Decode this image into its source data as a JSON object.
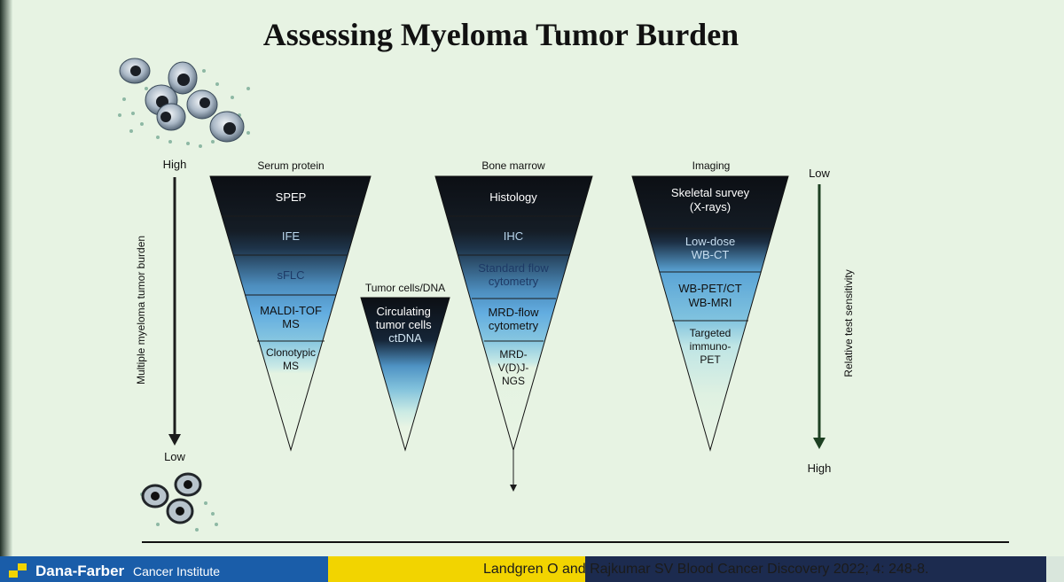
{
  "title": "Assessing Myeloma Tumor Burden",
  "left_axis": {
    "top": "High",
    "bottom": "Low",
    "label": "Multiple myeloma tumor burden"
  },
  "right_axis": {
    "top": "Low",
    "bottom": "High",
    "label": "Relative test sensitivity"
  },
  "serum": {
    "header": "Serum protein",
    "levels": [
      {
        "label": [
          "SPEP"
        ],
        "text_color": "#ffffff"
      },
      {
        "label": [
          "IFE"
        ],
        "text_color": "#b9d6ec"
      },
      {
        "label": [
          "sFLC"
        ],
        "text_color": "#1e3a66"
      },
      {
        "label": [
          "MALDI-TOF",
          "MS"
        ],
        "text_color": "#111111"
      },
      {
        "label": [
          "Clonotypic",
          "MS"
        ],
        "text_color": "#111111"
      }
    ]
  },
  "tumor": {
    "header": "Tumor cells/DNA",
    "label": [
      "Circulating",
      "tumor cells",
      "ctDNA"
    ]
  },
  "marrow": {
    "header": "Bone marrow",
    "levels": [
      {
        "label": [
          "Histology"
        ],
        "text_color": "#ffffff"
      },
      {
        "label": [
          "IHC"
        ],
        "text_color": "#b9d6ec"
      },
      {
        "label": [
          "Standard flow",
          "cytometry"
        ],
        "text_color": "#1e3a66"
      },
      {
        "label": [
          "MRD-flow",
          "cytometry"
        ],
        "text_color": "#111111"
      },
      {
        "label": [
          "MRD-",
          "V(D)J-",
          "NGS"
        ],
        "text_color": "#111111"
      }
    ]
  },
  "imaging": {
    "header": "Imaging",
    "levels": [
      {
        "label": [
          "Skeletal survey",
          "(X-rays)"
        ],
        "text_color": "#ffffff"
      },
      {
        "label": [
          "Low-dose",
          "WB-CT"
        ],
        "text_color": "#c7def0"
      },
      {
        "label": [
          "WB-PET/CT",
          "WB-MRI"
        ],
        "text_color": "#111111"
      },
      {
        "label": [
          "Targeted",
          "immuno-",
          "PET"
        ],
        "text_color": "#111111"
      }
    ]
  },
  "footer": {
    "institute_name": "Dana-Farber",
    "institute_sub": "Cancer Institute",
    "citation": "Landgren O and Rajkumar SV Blood Cancer Discovery 2022; 4: 248-8."
  },
  "colors": {
    "slide_bg": "#e7f3e3",
    "dark_band": "#111418",
    "mid_band": "#5fa9da",
    "light_band": "#bfe5e6",
    "arrow": "#1c1c1c",
    "right_arrow": "#1d4022",
    "footer_blue": "#1a5da9",
    "footer_yellow": "#f2d400",
    "footer_navy": "#1b2848"
  }
}
